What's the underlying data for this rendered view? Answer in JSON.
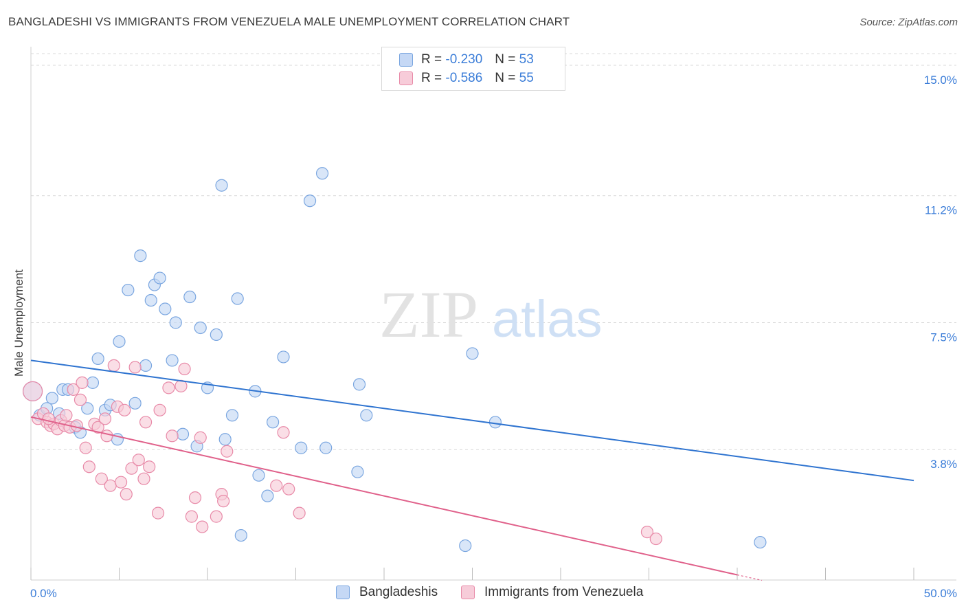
{
  "title": "BANGLADESHI VS IMMIGRANTS FROM VENEZUELA MALE UNEMPLOYMENT CORRELATION CHART",
  "source": "Source: ZipAtlas.com",
  "watermark": {
    "part1": "ZIP",
    "part2": "atlas"
  },
  "legend": {
    "rows": [
      {
        "r_label": "R =",
        "r_value": "-0.230",
        "n_label": "N =",
        "n_value": "53"
      },
      {
        "r_label": "R =",
        "r_value": "-0.586",
        "n_label": "N =",
        "n_value": "55"
      }
    ]
  },
  "colors": {
    "blue_fill": "#c5d8f5",
    "blue_stroke": "#7aa6e0",
    "blue_line": "#2f74d0",
    "pink_fill": "#f7ccd9",
    "pink_stroke": "#e88aa8",
    "pink_line": "#e0608a",
    "tick_text": "#3b7dd8",
    "grid": "#d9d9d9"
  },
  "chart_data": {
    "type": "scatter",
    "title": "BANGLADESHI VS IMMIGRANTS FROM VENEZUELA MALE UNEMPLOYMENT CORRELATION CHART",
    "xlabel": "",
    "ylabel": "Male Unemployment",
    "xlim": [
      0,
      50
    ],
    "ylim": [
      0,
      15.5
    ],
    "x_tick_labels": [
      "0.0%",
      "50.0%"
    ],
    "y_ticks": [
      {
        "value": 3.8,
        "label": "3.8%"
      },
      {
        "value": 7.5,
        "label": "7.5%"
      },
      {
        "value": 11.2,
        "label": "11.2%"
      },
      {
        "value": 15.0,
        "label": "15.0%"
      }
    ],
    "grid": "horizontal dashed",
    "legend_position": "top-center",
    "series": [
      {
        "name": "Bangladeshis",
        "color": "#7aa6e0",
        "trend": {
          "x": [
            0,
            50
          ],
          "y": [
            6.4,
            2.9
          ]
        },
        "points": [
          [
            0.1,
            5.5
          ],
          [
            0.5,
            4.8
          ],
          [
            0.9,
            5.0
          ],
          [
            1.2,
            5.3
          ],
          [
            1.6,
            4.85
          ],
          [
            1.8,
            5.55
          ],
          [
            2.1,
            5.55
          ],
          [
            2.5,
            4.45
          ],
          [
            2.8,
            4.3
          ],
          [
            3.2,
            5.0
          ],
          [
            3.5,
            5.75
          ],
          [
            3.8,
            6.45
          ],
          [
            4.2,
            4.95
          ],
          [
            4.5,
            5.1
          ],
          [
            4.9,
            4.1
          ],
          [
            5.0,
            6.95
          ],
          [
            5.5,
            8.45
          ],
          [
            5.9,
            5.15
          ],
          [
            6.2,
            9.45
          ],
          [
            6.5,
            6.25
          ],
          [
            6.8,
            8.15
          ],
          [
            7.0,
            8.6
          ],
          [
            7.3,
            8.8
          ],
          [
            7.6,
            7.9
          ],
          [
            8.0,
            6.4
          ],
          [
            8.2,
            7.5
          ],
          [
            8.6,
            4.25
          ],
          [
            9.0,
            8.25
          ],
          [
            9.4,
            3.9
          ],
          [
            9.6,
            7.35
          ],
          [
            10.0,
            5.6
          ],
          [
            10.5,
            7.15
          ],
          [
            10.8,
            11.5
          ],
          [
            11.0,
            4.1
          ],
          [
            11.4,
            4.8
          ],
          [
            11.7,
            8.2
          ],
          [
            11.9,
            1.3
          ],
          [
            12.7,
            5.5
          ],
          [
            12.9,
            3.05
          ],
          [
            13.4,
            2.45
          ],
          [
            13.7,
            4.6
          ],
          [
            14.3,
            6.5
          ],
          [
            15.3,
            3.85
          ],
          [
            15.8,
            11.05
          ],
          [
            16.5,
            11.85
          ],
          [
            16.7,
            3.85
          ],
          [
            18.5,
            3.15
          ],
          [
            18.6,
            5.7
          ],
          [
            19.0,
            4.8
          ],
          [
            24.6,
            1.0
          ],
          [
            25.0,
            6.6
          ],
          [
            26.3,
            4.6
          ],
          [
            41.3,
            1.1
          ]
        ]
      },
      {
        "name": "Immigrants from Venezuela",
        "color": "#e88aa8",
        "trend": {
          "x": [
            0,
            40
          ],
          "y": [
            4.75,
            0.15
          ]
        },
        "points": [
          [
            0.1,
            5.5
          ],
          [
            0.4,
            4.7
          ],
          [
            0.7,
            4.85
          ],
          [
            0.9,
            4.6
          ],
          [
            1.1,
            4.5
          ],
          [
            1.3,
            4.55
          ],
          [
            1.5,
            4.4
          ],
          [
            1.7,
            4.65
          ],
          [
            1.9,
            4.5
          ],
          [
            2.0,
            4.8
          ],
          [
            2.2,
            4.45
          ],
          [
            2.4,
            5.55
          ],
          [
            2.6,
            4.5
          ],
          [
            2.8,
            5.25
          ],
          [
            2.9,
            5.75
          ],
          [
            3.1,
            3.85
          ],
          [
            3.3,
            3.3
          ],
          [
            3.6,
            4.55
          ],
          [
            3.8,
            4.45
          ],
          [
            4.0,
            2.95
          ],
          [
            4.2,
            4.7
          ],
          [
            4.3,
            4.2
          ],
          [
            4.5,
            2.75
          ],
          [
            4.7,
            6.25
          ],
          [
            4.9,
            5.05
          ],
          [
            5.1,
            2.85
          ],
          [
            5.3,
            4.95
          ],
          [
            5.4,
            2.5
          ],
          [
            5.7,
            3.25
          ],
          [
            5.9,
            6.2
          ],
          [
            6.1,
            3.5
          ],
          [
            6.4,
            2.95
          ],
          [
            6.5,
            4.6
          ],
          [
            6.7,
            3.3
          ],
          [
            7.2,
            1.95
          ],
          [
            7.3,
            4.95
          ],
          [
            7.8,
            5.6
          ],
          [
            8.0,
            4.2
          ],
          [
            8.5,
            5.65
          ],
          [
            8.7,
            6.15
          ],
          [
            9.1,
            1.85
          ],
          [
            9.3,
            2.4
          ],
          [
            9.6,
            4.15
          ],
          [
            9.7,
            1.55
          ],
          [
            10.5,
            1.85
          ],
          [
            10.8,
            2.5
          ],
          [
            10.9,
            2.3
          ],
          [
            11.1,
            3.75
          ],
          [
            13.9,
            2.75
          ],
          [
            14.3,
            4.3
          ],
          [
            14.6,
            2.65
          ],
          [
            15.2,
            1.95
          ],
          [
            34.9,
            1.4
          ],
          [
            35.4,
            1.2
          ],
          [
            1.0,
            4.7
          ]
        ]
      }
    ]
  }
}
